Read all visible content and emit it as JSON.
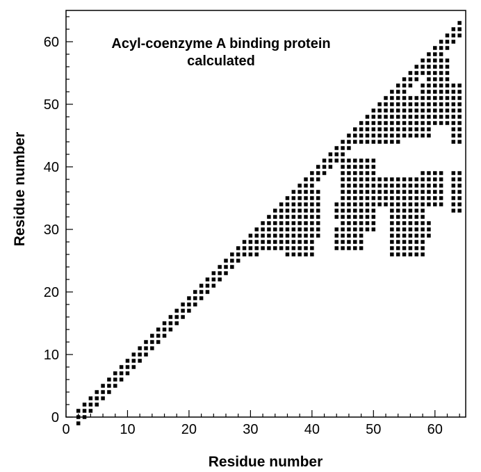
{
  "chart_data": {
    "type": "scatter",
    "title": "Acyl-coenzyme A binding protein",
    "subtitle": "calculated",
    "xlabel": "Residue number",
    "ylabel": "Residue number",
    "xlim": [
      0,
      65
    ],
    "ylim": [
      0,
      65
    ],
    "xticks": [
      0,
      10,
      20,
      30,
      40,
      50,
      60
    ],
    "yticks": [
      0,
      10,
      20,
      30,
      40,
      50,
      60
    ],
    "grid": false,
    "marker": "square",
    "marker_color": "#000000",
    "diagonal_contacts": {
      "description": "i, i+1 .. i+3 band",
      "from_residue": 2,
      "to_residue": 64
    },
    "blocks": [
      {
        "x": [
          28,
          31
        ],
        "y": [
          26,
          30
        ]
      },
      {
        "x": [
          32,
          36
        ],
        "y": [
          27,
          34
        ]
      },
      {
        "x": [
          36,
          40
        ],
        "y": [
          26,
          29
        ]
      },
      {
        "x": [
          33,
          41
        ],
        "y": [
          29,
          36
        ]
      },
      {
        "x": [
          44,
          48
        ],
        "y": [
          27,
          30
        ]
      },
      {
        "x": [
          45,
          50
        ],
        "y": [
          30,
          41
        ]
      },
      {
        "x": [
          44,
          46
        ],
        "y": [
          32,
          34
        ]
      },
      {
        "x": [
          50,
          53
        ],
        "y": [
          34,
          38
        ]
      },
      {
        "x": [
          52,
          58
        ],
        "y": [
          34,
          38
        ]
      },
      {
        "x": [
          53,
          58
        ],
        "y": [
          26,
          33
        ]
      },
      {
        "x": [
          57,
          59
        ],
        "y": [
          29,
          31
        ]
      },
      {
        "x": [
          58,
          61
        ],
        "y": [
          34,
          39
        ]
      },
      {
        "x": [
          63,
          64
        ],
        "y": [
          33,
          39
        ]
      },
      {
        "x": [
          46,
          54
        ],
        "y": [
          44,
          48
        ]
      },
      {
        "x": [
          53,
          57
        ],
        "y": [
          46,
          51
        ]
      },
      {
        "x": [
          55,
          59
        ],
        "y": [
          45,
          49
        ]
      },
      {
        "x": [
          58,
          62
        ],
        "y": [
          47,
          53
        ]
      },
      {
        "x": [
          59,
          62
        ],
        "y": [
          54,
          57
        ]
      },
      {
        "x": [
          63,
          64
        ],
        "y": [
          44,
          53
        ]
      }
    ]
  }
}
